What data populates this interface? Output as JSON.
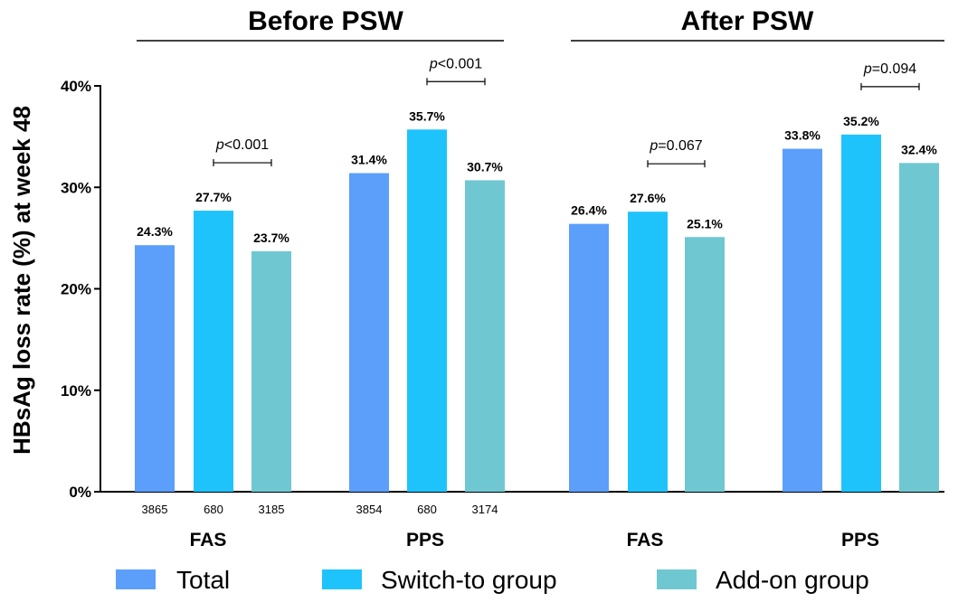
{
  "chart_data": {
    "type": "bar",
    "ylabel": "HBsAg loss rate (%) at week 48",
    "ylim": [
      0,
      40
    ],
    "yticks": [
      "0%",
      "10%",
      "20%",
      "30%",
      "40%"
    ],
    "grid": false,
    "legend": {
      "placement": "bottom",
      "entries": [
        "Total",
        "Switch-to group",
        "Add-on group"
      ]
    },
    "colors": {
      "Total": "#5b9ffb",
      "Switch-to group": "#1fc3fb",
      "Add-on group": "#6fc8d1"
    },
    "panels": [
      {
        "title": "Before PSW",
        "groups": [
          {
            "name": "FAS",
            "values": [
              24.3,
              27.7,
              23.7
            ],
            "labels": [
              "24.3%",
              "27.7%",
              "23.7%"
            ],
            "n": [
              "3865",
              "680",
              "3185"
            ],
            "p_prefix": "p",
            "p_value": "<0.001"
          },
          {
            "name": "PPS",
            "values": [
              31.4,
              35.7,
              30.7
            ],
            "labels": [
              "31.4%",
              "35.7%",
              "30.7%"
            ],
            "n": [
              "3854",
              "680",
              "3174"
            ],
            "p_prefix": "p",
            "p_value": "<0.001"
          }
        ]
      },
      {
        "title": "After PSW",
        "groups": [
          {
            "name": "FAS",
            "values": [
              26.4,
              27.6,
              25.1
            ],
            "labels": [
              "26.4%",
              "27.6%",
              "25.1%"
            ],
            "n": [],
            "p_prefix": "p",
            "p_value": "=0.067"
          },
          {
            "name": "PPS",
            "values": [
              33.8,
              35.2,
              32.4
            ],
            "labels": [
              "33.8%",
              "35.2%",
              "32.4%"
            ],
            "n": [],
            "p_prefix": "p",
            "p_value": "=0.094"
          }
        ]
      }
    ]
  }
}
